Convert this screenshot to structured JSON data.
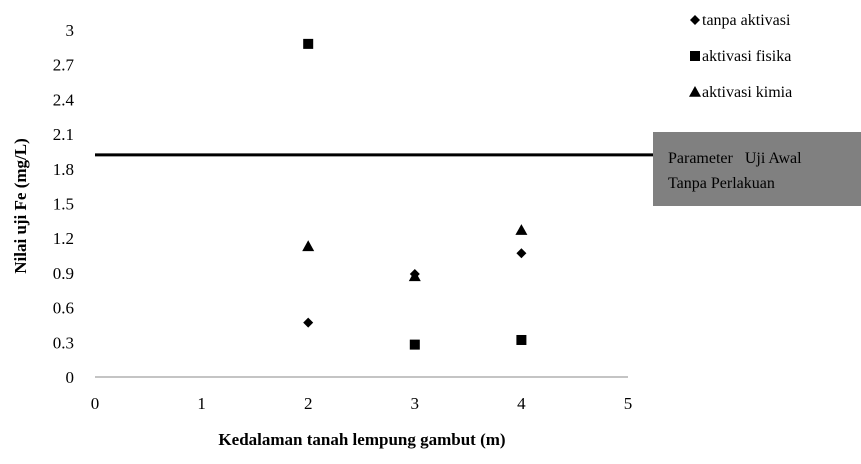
{
  "chart_data": {
    "type": "scatter",
    "title": "",
    "xlabel": "Kedalaman tanah lempung gambut (m)",
    "ylabel": "Nilai uji Fe (mg/L)",
    "xlim": [
      0,
      5
    ],
    "ylim": [
      0,
      3
    ],
    "xticks": [
      "0",
      "1",
      "2",
      "3",
      "4",
      "5"
    ],
    "yticks": [
      "0",
      "0.3",
      "0.6",
      "0.9",
      "1.2",
      "1.5",
      "1.8",
      "2.1",
      "2.4",
      "2.7",
      "3"
    ],
    "grid": false,
    "legend_position": "top-right",
    "series": [
      {
        "name": "tanpa aktivasi",
        "marker": "diamond",
        "color": "#000000",
        "points": [
          {
            "x": 2,
            "y": 0.47
          },
          {
            "x": 3,
            "y": 0.89
          },
          {
            "x": 4,
            "y": 1.07
          }
        ]
      },
      {
        "name": "aktivasi fisika",
        "marker": "square",
        "color": "#000000",
        "points": [
          {
            "x": 2,
            "y": 2.88
          },
          {
            "x": 3,
            "y": 0.28
          },
          {
            "x": 4,
            "y": 0.32
          }
        ]
      },
      {
        "name": "aktivasi kimia",
        "marker": "triangle",
        "color": "#000000",
        "points": [
          {
            "x": 2,
            "y": 1.13
          },
          {
            "x": 3,
            "y": 0.87
          },
          {
            "x": 4,
            "y": 1.27
          }
        ]
      }
    ],
    "reference_line": {
      "y": 1.92,
      "color": "#000000"
    },
    "annotation": {
      "line1": "Parameter   Uji Awal",
      "line2": "Tanpa Perlakuan",
      "background": "#808080"
    }
  }
}
